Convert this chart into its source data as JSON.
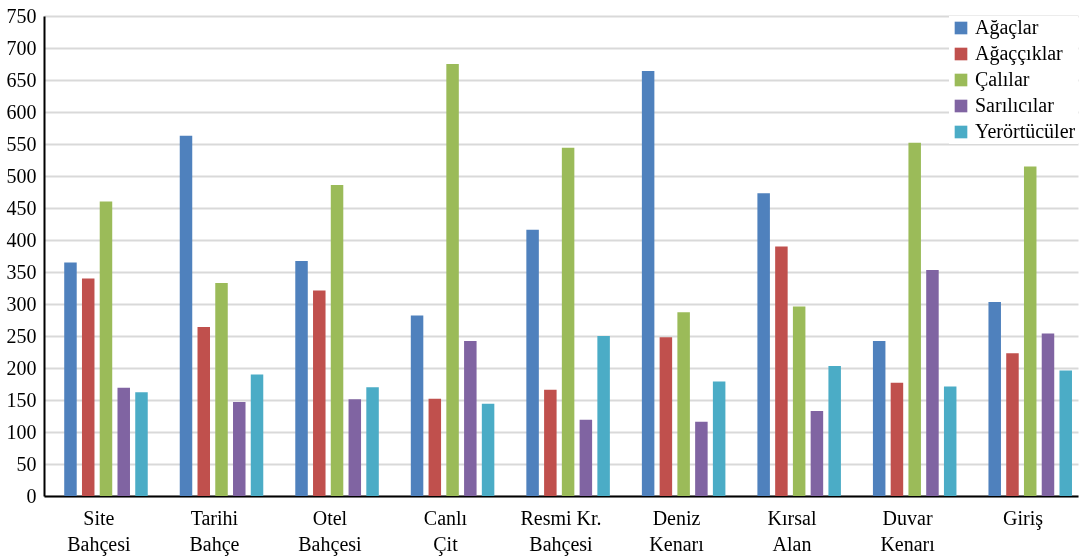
{
  "chart_data": {
    "type": "bar",
    "categories": [
      "Site Bahçesi",
      "Tarihi Bahçe",
      "Otel Bahçesi",
      "Canlı Çit",
      "Resmi Kr. Bahçesi",
      "Deniz Kenarı",
      "Kırsal Alan",
      "Duvar Kenarı",
      "Giriş"
    ],
    "series": [
      {
        "name": "Ağaçlar",
        "color": "#4f81bd",
        "values": [
          365,
          563,
          367,
          282,
          416,
          664,
          473,
          242,
          303
        ]
      },
      {
        "name": "Ağaççıklar",
        "color": "#c0504d",
        "values": [
          340,
          264,
          321,
          152,
          166,
          248,
          390,
          177,
          223
        ]
      },
      {
        "name": "Çalılar",
        "color": "#9bbb59",
        "values": [
          460,
          333,
          486,
          675,
          544,
          287,
          296,
          552,
          515
        ]
      },
      {
        "name": "Sarılıcılar",
        "color": "#8064a2",
        "values": [
          169,
          147,
          151,
          242,
          119,
          116,
          133,
          353,
          254
        ]
      },
      {
        "name": "Yerörtücüler",
        "color": "#4bacc6",
        "values": [
          162,
          190,
          170,
          144,
          250,
          179,
          203,
          171,
          196
        ]
      }
    ],
    "ylim": [
      0,
      750
    ],
    "yticks": [
      0,
      50,
      100,
      150,
      200,
      250,
      300,
      350,
      400,
      450,
      500,
      550,
      600,
      650,
      700,
      750
    ],
    "grid": "y",
    "legend": "top right"
  }
}
